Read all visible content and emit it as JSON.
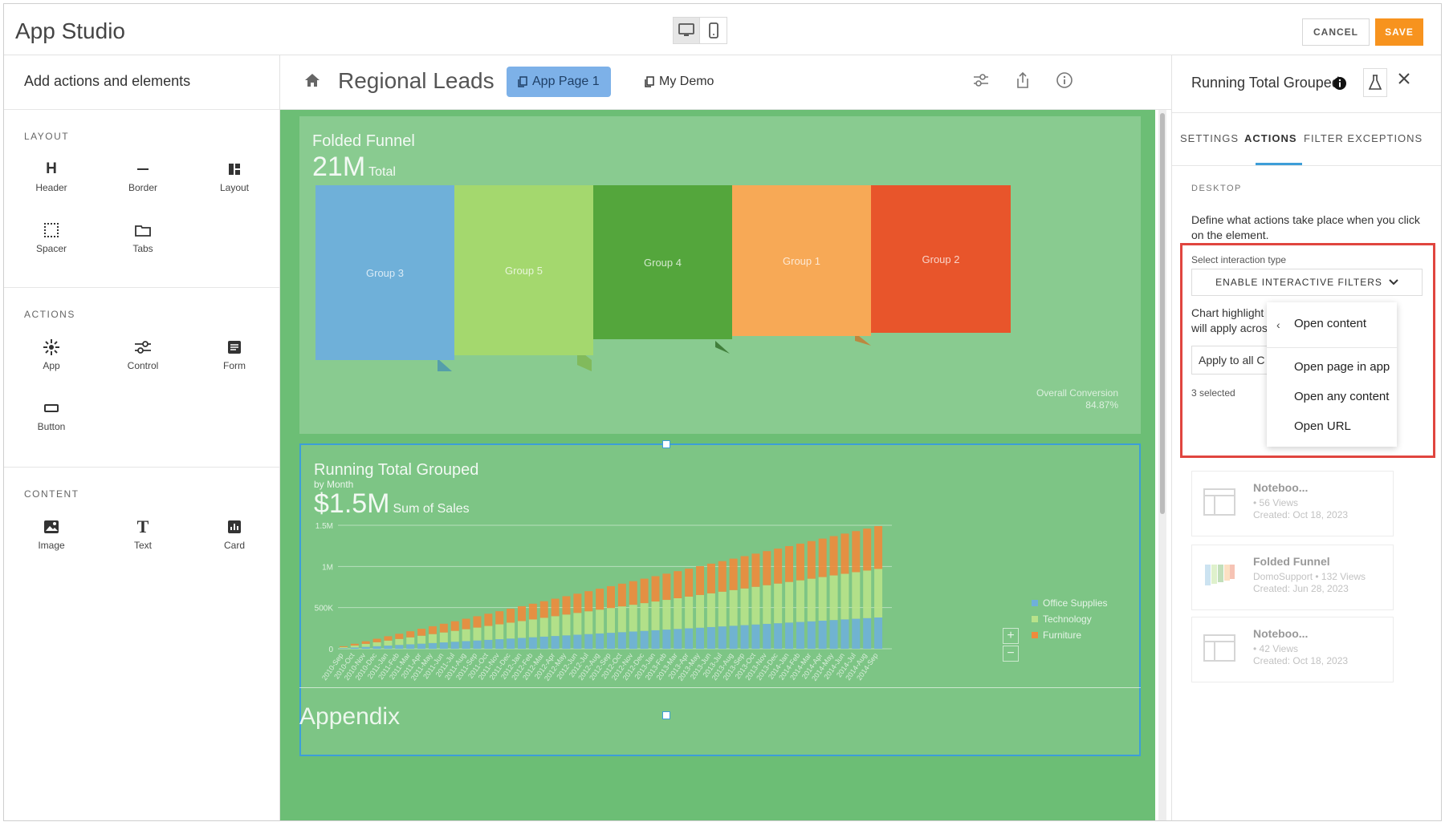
{
  "app": {
    "title": "App Studio"
  },
  "toolbar": {
    "cancel_label": "CANCEL",
    "save_label": "SAVE"
  },
  "left_panel": {
    "heading": "Add actions and elements",
    "sections": [
      {
        "title": "LAYOUT",
        "items": [
          {
            "label": "Header",
            "icon": "header-icon"
          },
          {
            "label": "Border",
            "icon": "border-icon"
          },
          {
            "label": "Layout",
            "icon": "layout-icon"
          },
          {
            "label": "Spacer",
            "icon": "spacer-icon"
          },
          {
            "label": "Tabs",
            "icon": "tabs-icon"
          }
        ]
      },
      {
        "title": "ACTIONS",
        "items": [
          {
            "label": "App",
            "icon": "app-icon"
          },
          {
            "label": "Control",
            "icon": "control-icon"
          },
          {
            "label": "Form",
            "icon": "form-icon"
          },
          {
            "label": "Button",
            "icon": "button-icon"
          }
        ]
      },
      {
        "title": "CONTENT",
        "items": [
          {
            "label": "Image",
            "icon": "image-icon"
          },
          {
            "label": "Text",
            "icon": "text-icon"
          },
          {
            "label": "Card",
            "icon": "card-icon"
          }
        ]
      }
    ]
  },
  "center": {
    "page_title": "Regional Leads",
    "tabs": [
      {
        "label": "App Page 1",
        "active": true
      },
      {
        "label": "My Demo",
        "active": false
      }
    ],
    "canvas_color": "#6cbe75"
  },
  "funnel": {
    "title": "Folded Funnel",
    "value": "21M",
    "value_unit": "Total",
    "groups": [
      {
        "label": "Group 3",
        "color": "#6fb0d9"
      },
      {
        "label": "Group 5",
        "color": "#a4d86e"
      },
      {
        "label": "Group 4",
        "color": "#54a63c"
      },
      {
        "label": "Group 1",
        "color": "#f7a956"
      },
      {
        "label": "Group 2",
        "color": "#e8552b"
      }
    ],
    "conversion_label": "Overall Conversion",
    "conversion_value": "84.87%"
  },
  "running_total": {
    "title": "Running Total Grouped",
    "subtitle": "by Month",
    "value": "$1.5M",
    "value_unit": "Sum of Sales"
  },
  "chart_data": {
    "type": "bar",
    "stacked": true,
    "categories": [
      "2010-Sep",
      "2010-Oct",
      "2010-Nov",
      "2010-Dec",
      "2011-Jan",
      "2011-Feb",
      "2011-Mar",
      "2011-Apr",
      "2011-May",
      "2011-Jun",
      "2011-Jul",
      "2011-Aug",
      "2011-Sep",
      "2011-Oct",
      "2011-Nov",
      "2011-Dec",
      "2012-Jan",
      "2012-Feb",
      "2012-Mar",
      "2012-Apr",
      "2012-May",
      "2012-Jun",
      "2012-Jul",
      "2012-Aug",
      "2012-Sep",
      "2012-Oct",
      "2012-Nov",
      "2012-Dec",
      "2013-Jan",
      "2013-Feb",
      "2013-Mar",
      "2013-Apr",
      "2013-May",
      "2013-Jun",
      "2013-Jul",
      "2013-Aug",
      "2013-Sep",
      "2013-Oct",
      "2013-Nov",
      "2013-Dec",
      "2014-Jan",
      "2014-Feb",
      "2014-Mar",
      "2014-Apr",
      "2014-May",
      "2014-Jun",
      "2014-Jul",
      "2014-Aug",
      "2014-Sep"
    ],
    "series": [
      {
        "name": "Office Supplies",
        "color": "#6fb0d9",
        "final": 380000
      },
      {
        "name": "Technology",
        "color": "#b8e28a",
        "final": 590000
      },
      {
        "name": "Furniture",
        "color": "#f08a3c",
        "final": 520000
      }
    ],
    "yticks": [
      "1.5M",
      "1M",
      "500K",
      "0"
    ],
    "ylim": [
      0,
      1500000
    ]
  },
  "right_panel": {
    "title": "Running Total Grouped",
    "tabs": [
      {
        "label": "SETTINGS"
      },
      {
        "label": "ACTIONS"
      },
      {
        "label": "FILTER EXCEPTIONS"
      }
    ],
    "section_label": "DESKTOP",
    "description": "Define what actions take place when you click on the element.",
    "select_label": "Select interaction type",
    "select_value": "ENABLE INTERACTIVE FILTERS",
    "chart_highlight_text_1": "Chart highlight",
    "chart_highlight_text_2": "will apply acros",
    "apply_label": "Apply to all C",
    "selected_count": "3 selected",
    "menu": {
      "items": [
        "Open content",
        "Open page in app",
        "Open any content",
        "Open URL"
      ]
    },
    "content_cards": [
      {
        "title": "Noteboo...",
        "meta_1": "• 56 Views",
        "meta_2": "Created: Oct 18, 2023"
      },
      {
        "title": "Folded Funnel",
        "meta_1": "DomoSupport • 132 Views",
        "meta_2": "Created: Jun 28, 2023"
      },
      {
        "title": "Noteboo...",
        "meta_1": "• 42 Views",
        "meta_2": "Created: Oct 18, 2023"
      }
    ]
  },
  "canvas": {
    "appendix": "Appendix"
  }
}
